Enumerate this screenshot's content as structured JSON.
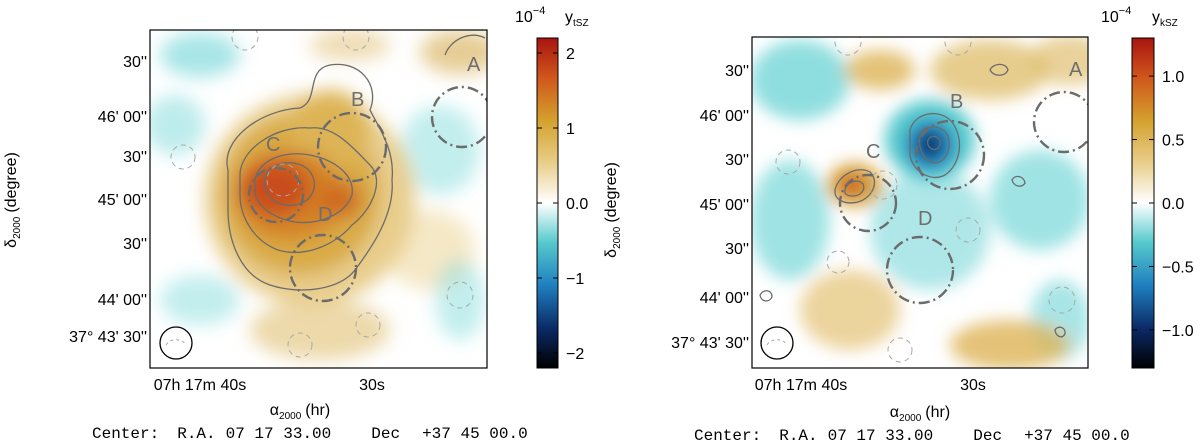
{
  "chart_data": [
    {
      "type": "heatmap",
      "panel": "left",
      "quantity": "y",
      "quantity_sub": "tSZ",
      "colorbar": {
        "exponent_base": "10",
        "exponent": "−4",
        "range": [
          -2.2,
          2.2
        ],
        "ticks": [
          {
            "value": 2,
            "label": "2"
          },
          {
            "value": 1,
            "label": "1"
          },
          {
            "value": 0,
            "label": "0.0"
          },
          {
            "value": -1,
            "label": "−1"
          },
          {
            "value": -2,
            "label": "−2"
          }
        ]
      },
      "xlabel": "α",
      "xlabel_sub": "2000",
      "xlabel_unit": "(hr)",
      "ylabel": "δ",
      "ylabel_sub": "2000",
      "ylabel_unit": "(degree)",
      "x_ticks": [
        "07h 17m 40s",
        "30s"
      ],
      "y_ticks": [
        "30''",
        "46' 00''",
        "30''",
        "45' 00''",
        "30''",
        "44' 00''",
        "37° 43' 30''"
      ],
      "regions": [
        "A",
        "B",
        "C",
        "D"
      ],
      "center": {
        "prefix": "Center:",
        "ra_label": "R.A.",
        "ra": "07 17 33.00",
        "dec_label": "Dec",
        "dec": "+37 45 00.0"
      }
    },
    {
      "type": "heatmap",
      "panel": "right",
      "quantity": "y",
      "quantity_sub": "kSZ",
      "colorbar": {
        "exponent_base": "10",
        "exponent": "−4",
        "range": [
          -1.3,
          1.3
        ],
        "ticks": [
          {
            "value": 1.0,
            "label": "1.0"
          },
          {
            "value": 0.5,
            "label": "0.5"
          },
          {
            "value": 0,
            "label": "0.0"
          },
          {
            "value": -0.5,
            "label": "−0.5"
          },
          {
            "value": -1.0,
            "label": "−1.0"
          }
        ]
      },
      "xlabel": "α",
      "xlabel_sub": "2000",
      "xlabel_unit": "(hr)",
      "ylabel": "δ",
      "ylabel_sub": "2000",
      "ylabel_unit": "(degree)",
      "x_ticks": [
        "07h 17m 40s",
        "30s"
      ],
      "y_ticks": [
        "30''",
        "46' 00''",
        "30''",
        "45' 00''",
        "30''",
        "44' 00''",
        "37° 43' 30''"
      ],
      "regions": [
        "A",
        "B",
        "C",
        "D"
      ],
      "center": {
        "prefix": "Center:",
        "ra_label": "R.A.",
        "ra": "07 17 33.00",
        "dec_label": "Dec",
        "dec": "+37 45 00.0"
      }
    }
  ]
}
